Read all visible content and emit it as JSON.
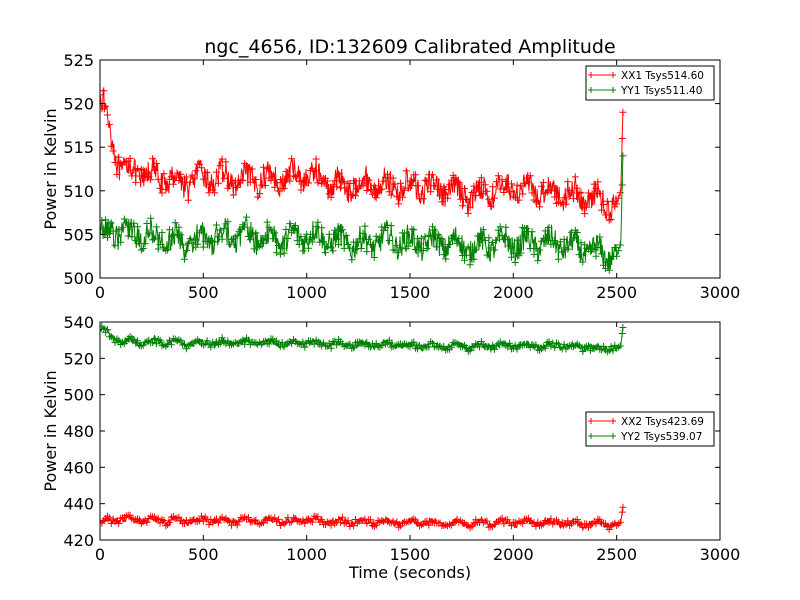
{
  "chart_data": [
    {
      "type": "line",
      "title": "ngc_4656, ID:132609 Calibrated Amplitude",
      "xlabel": "",
      "ylabel": "Power in Kelvin",
      "xlim": [
        0,
        3000
      ],
      "ylim": [
        500,
        525
      ],
      "xticks": [
        0,
        500,
        1000,
        1500,
        2000,
        2500,
        3000
      ],
      "yticks": [
        500,
        505,
        510,
        515,
        520,
        525
      ],
      "grid": false,
      "legend_position": "top-right",
      "marker": "plus",
      "series": [
        {
          "name": "XX1 Tsys514.60",
          "color": "#ff0000",
          "x": [
            0,
            100,
            200,
            300,
            400,
            500,
            600,
            700,
            800,
            900,
            1000,
            1100,
            1200,
            1300,
            1400,
            1500,
            1600,
            1700,
            1800,
            1900,
            2000,
            2100,
            2200,
            2300,
            2400,
            2500,
            2520,
            2530
          ],
          "y": [
            521,
            512.5,
            512,
            511.5,
            511,
            511.5,
            511.5,
            511,
            511.5,
            511.5,
            512,
            511,
            510.5,
            511,
            510.5,
            510.5,
            510.5,
            510,
            509.5,
            510,
            510.5,
            510,
            510,
            509.5,
            509,
            508.5,
            510,
            519
          ]
        },
        {
          "name": "YY1 Tsys511.40",
          "color": "#008000",
          "x": [
            0,
            100,
            200,
            300,
            400,
            500,
            600,
            700,
            800,
            900,
            1000,
            1100,
            1200,
            1300,
            1400,
            1500,
            1600,
            1700,
            1800,
            1900,
            2000,
            2100,
            2200,
            2300,
            2400,
            2500,
            2520,
            2530
          ],
          "y": [
            505,
            505.5,
            505,
            504.5,
            504,
            504.5,
            505,
            505,
            504.5,
            504.5,
            505,
            504.5,
            504,
            504,
            504.5,
            504,
            504,
            504,
            503.5,
            504,
            504,
            504,
            504,
            503.5,
            503,
            502.5,
            504,
            514
          ]
        }
      ]
    },
    {
      "type": "line",
      "title": "",
      "xlabel": "Time (seconds)",
      "ylabel": "Power in Kelvin",
      "xlim": [
        0,
        3000
      ],
      "ylim": [
        420,
        540
      ],
      "xticks": [
        0,
        500,
        1000,
        1500,
        2000,
        2500,
        3000
      ],
      "yticks": [
        420,
        440,
        460,
        480,
        500,
        520,
        540
      ],
      "grid": false,
      "legend_position": "center-right",
      "marker": "plus",
      "series": [
        {
          "name": "XX2 Tsys423.69",
          "color": "#ff0000",
          "x": [
            0,
            100,
            200,
            300,
            400,
            500,
            600,
            700,
            800,
            900,
            1000,
            1100,
            1200,
            1300,
            1400,
            1500,
            1600,
            1700,
            1800,
            1900,
            2000,
            2100,
            2200,
            2300,
            2400,
            2500,
            2520,
            2530
          ],
          "y": [
            430,
            431,
            431,
            430.5,
            430.5,
            431,
            430.5,
            430.5,
            431,
            430.5,
            431,
            430.5,
            430,
            430,
            430,
            429.5,
            429.5,
            429.5,
            429,
            429.5,
            429.5,
            429.5,
            429.5,
            429,
            429,
            428,
            430,
            438
          ]
        },
        {
          "name": "YY2 Tsys539.07",
          "color": "#008000",
          "x": [
            0,
            100,
            200,
            300,
            400,
            500,
            600,
            700,
            800,
            900,
            1000,
            1100,
            1200,
            1300,
            1400,
            1500,
            1600,
            1700,
            1800,
            1900,
            2000,
            2100,
            2200,
            2300,
            2400,
            2500,
            2520,
            2530
          ],
          "y": [
            536,
            529.5,
            529,
            529,
            528,
            528.5,
            528.5,
            528.5,
            528.5,
            528,
            528.5,
            528,
            527.5,
            527.5,
            527.5,
            527,
            527,
            527,
            526.5,
            527,
            527,
            527,
            527,
            526.5,
            526,
            525.5,
            527,
            537
          ]
        }
      ]
    }
  ]
}
